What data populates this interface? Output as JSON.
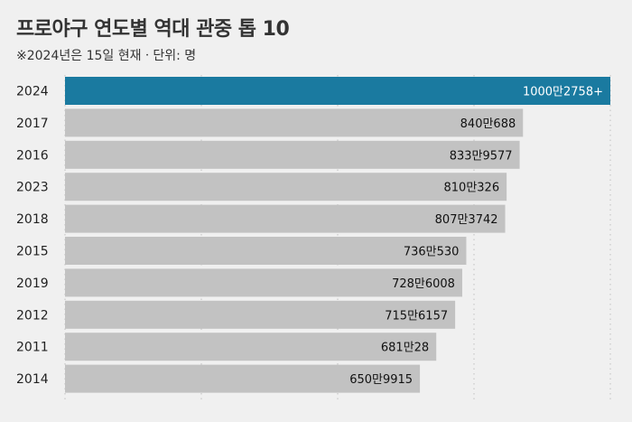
{
  "title": "프로야구 연도별 역대 관중 톱 10",
  "subtitle": "※2024년은 15일 현재ㆍ단위: 명",
  "colors": {
    "background": "#f0f0f0",
    "highlight_bar": "#1a7aa0",
    "bar": "#c2c2c2",
    "grid": "#c8c8c8"
  },
  "chart_data": {
    "type": "bar",
    "orientation": "horizontal",
    "categories": [
      "2024",
      "2017",
      "2016",
      "2023",
      "2018",
      "2015",
      "2019",
      "2012",
      "2011",
      "2014"
    ],
    "values": [
      10002758,
      8400688,
      8339577,
      8100326,
      8073742,
      7360530,
      7286008,
      7156157,
      6810028,
      6509915
    ],
    "value_labels": [
      "1000만2758+",
      "840만688",
      "833만9577",
      "810만326",
      "807만3742",
      "736만530",
      "728만6008",
      "715만6157",
      "681만28",
      "650만9915"
    ],
    "highlight_index": 0,
    "xlim": [
      0,
      10002758
    ],
    "grid": true,
    "xlabel": "",
    "ylabel": ""
  }
}
